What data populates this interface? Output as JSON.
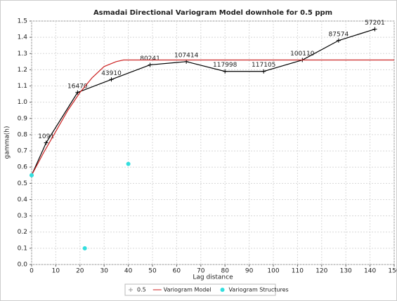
{
  "chart_data": {
    "type": "line",
    "title": "Asmadai Directional Variogram Model downhole for 0.5 ppm",
    "x_label": "Lag distance",
    "y_label": "gamma(h)",
    "xlim": [
      0,
      150
    ],
    "ylim": [
      0,
      1.5
    ],
    "xticks": [
      0,
      10,
      20,
      30,
      40,
      50,
      60,
      70,
      80,
      90,
      100,
      110,
      120,
      130,
      140,
      150
    ],
    "yticks": [
      {
        "value": 0,
        "label": "0.0"
      },
      0.1,
      0.2,
      0.3,
      0.4,
      0.5,
      0.6,
      0.7,
      0.8,
      0.9,
      {
        "value": 1,
        "label": "1.0"
      },
      1.1,
      1.2,
      1.3,
      1.4,
      1.5
    ],
    "grid": true,
    "series": [
      {
        "name": "0.5",
        "color": "#000000",
        "mode": "line-plus",
        "x": [
          0,
          6,
          19,
          33,
          49,
          64,
          80,
          96,
          112,
          127,
          142
        ],
        "values": [
          0.55,
          0.75,
          1.06,
          1.14,
          1.23,
          1.25,
          1.19,
          1.19,
          1.26,
          1.38,
          1.45
        ],
        "pair_counts": [
          null,
          1091,
          16470,
          43910,
          80241,
          107414,
          117998,
          117105,
          100110,
          87574,
          57201
        ]
      },
      {
        "name": "Variogram Model",
        "color": "#cc2222",
        "mode": "line",
        "x": [
          0,
          5,
          10,
          15,
          20,
          25,
          30,
          35,
          38,
          150
        ],
        "values": [
          0.55,
          0.69,
          0.82,
          0.95,
          1.06,
          1.15,
          1.22,
          1.25,
          1.26,
          1.26
        ]
      },
      {
        "name": "Variogram Structures",
        "color": "#33dede",
        "mode": "points",
        "x": [
          0,
          22,
          40
        ],
        "values": [
          0.55,
          0.1,
          0.62
        ]
      }
    ]
  }
}
